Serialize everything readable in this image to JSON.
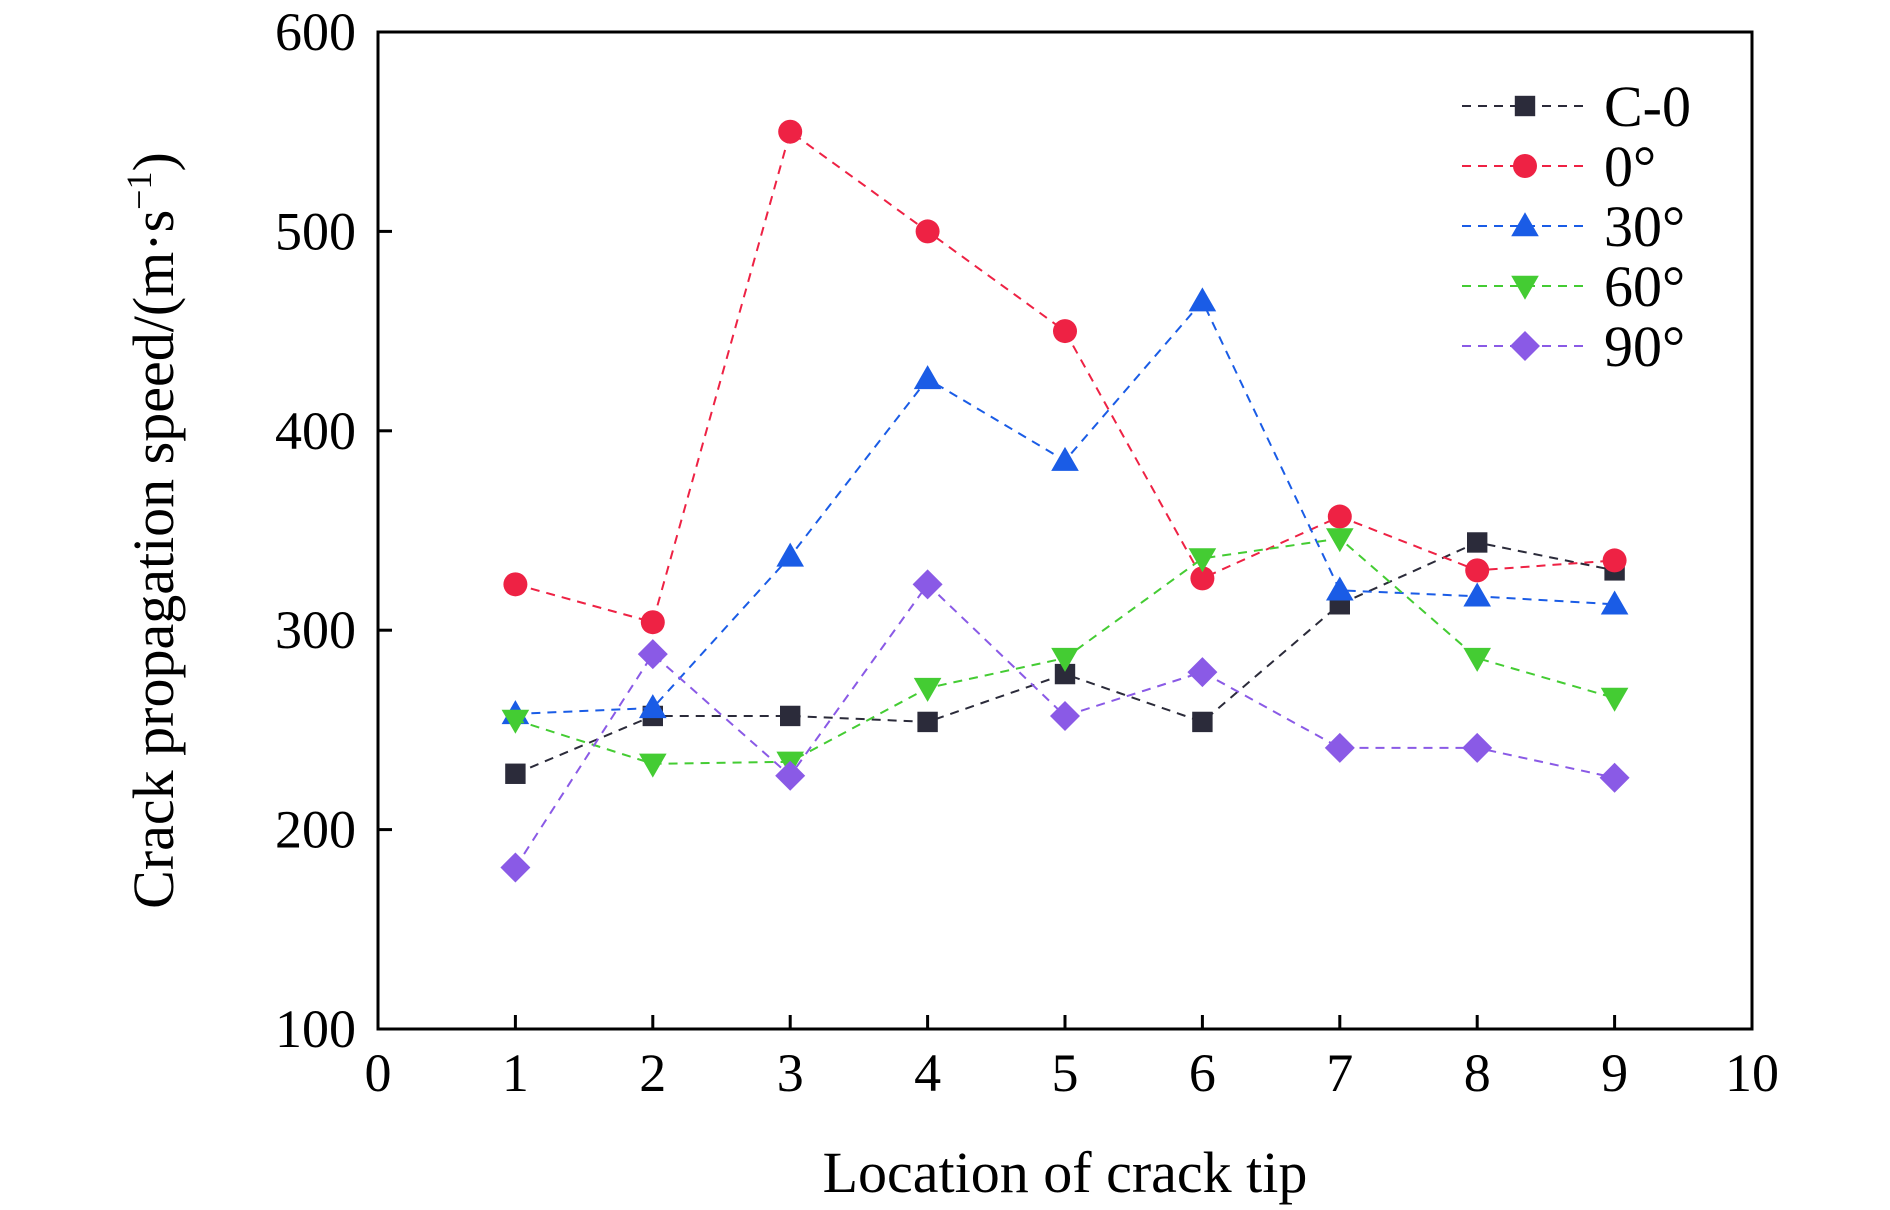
{
  "chart_data": {
    "type": "line",
    "xlabel": "Location of crack tip",
    "ylabel": "Crack propagation speed/(m·s",
    "ylabel_sup": "−1",
    "ylabel_end": ")",
    "xlim": [
      0,
      10
    ],
    "ylim": [
      100,
      600
    ],
    "xticks": [
      0,
      1,
      2,
      3,
      4,
      5,
      6,
      7,
      8,
      9,
      10
    ],
    "yticks": [
      100,
      200,
      300,
      400,
      500,
      600
    ],
    "grid": false,
    "legend_position": "top-right",
    "x": [
      1,
      2,
      3,
      4,
      5,
      6,
      7,
      8,
      9
    ],
    "series": [
      {
        "name": "C-0",
        "marker": "square",
        "color": "#2b2b3a",
        "values": [
          228,
          257,
          257,
          254,
          278,
          254,
          313,
          344,
          330
        ]
      },
      {
        "name": "0°",
        "marker": "circle",
        "color": "#ee2244",
        "values": [
          323,
          304,
          550,
          500,
          450,
          326,
          357,
          330,
          335
        ]
      },
      {
        "name": "30°",
        "marker": "triangle-up",
        "color": "#1a5ce6",
        "values": [
          258,
          261,
          337,
          426,
          385,
          465,
          320,
          317,
          313
        ]
      },
      {
        "name": "60°",
        "marker": "triangle-down",
        "color": "#44cc33",
        "values": [
          255,
          233,
          234,
          271,
          286,
          336,
          346,
          286,
          266
        ]
      },
      {
        "name": "90°",
        "marker": "diamond",
        "color": "#8a5ae6",
        "values": [
          181,
          288,
          227,
          323,
          257,
          279,
          241,
          241,
          226
        ]
      }
    ]
  }
}
